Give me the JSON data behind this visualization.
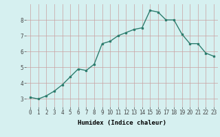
{
  "x": [
    0,
    1,
    2,
    3,
    4,
    5,
    6,
    7,
    8,
    9,
    10,
    11,
    12,
    13,
    14,
    15,
    16,
    17,
    18,
    19,
    20,
    21,
    22,
    23
  ],
  "y": [
    3.1,
    3.0,
    3.2,
    3.5,
    3.9,
    4.4,
    4.9,
    4.8,
    5.2,
    6.5,
    6.65,
    7.0,
    7.2,
    7.4,
    7.5,
    8.6,
    8.5,
    8.0,
    8.0,
    7.1,
    6.5,
    6.5,
    5.9,
    5.7
  ],
  "line_color": "#2d7d6e",
  "marker": "s",
  "marker_size": 2.0,
  "bg_color": "#d6f0f0",
  "grid_color_major": "#c8a0a0",
  "grid_color_minor": "#b8d8d8",
  "xlabel": "Humidex (Indice chaleur)",
  "ylim": [
    2.5,
    9.0
  ],
  "xlim": [
    -0.5,
    23.5
  ],
  "yticks": [
    3,
    4,
    5,
    6,
    7,
    8
  ],
  "xticks": [
    0,
    1,
    2,
    3,
    4,
    5,
    6,
    7,
    8,
    9,
    10,
    11,
    12,
    13,
    14,
    15,
    16,
    17,
    18,
    19,
    20,
    21,
    22,
    23
  ],
  "xlabel_fontsize": 6.5,
  "tick_fontsize": 5.5,
  "linewidth": 1.0
}
